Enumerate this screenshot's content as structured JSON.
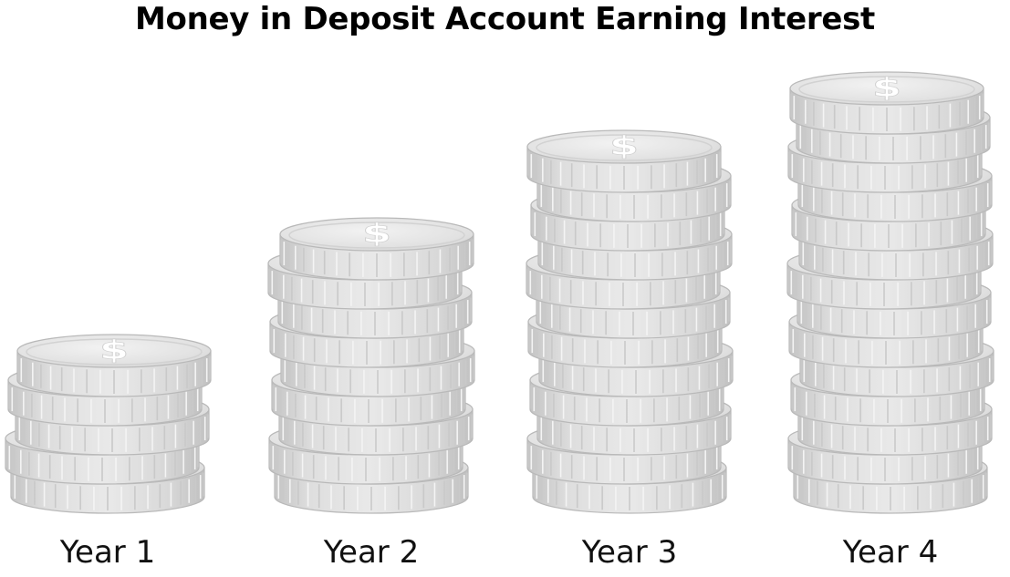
{
  "chart_data": {
    "type": "bar",
    "title": "Money in Deposit Account Earning Interest",
    "categories": [
      "Year 1",
      "Year 2",
      "Year 3",
      "Year 4"
    ],
    "values": [
      5,
      9,
      12,
      14
    ],
    "value_unit": "coin stack height (coins)",
    "xlabel": "",
    "ylabel": "",
    "grid": false,
    "legend": "none",
    "symbol": "$",
    "colors": {
      "coin_face": "#e4e4e4",
      "coin_edge": "#cfcfcf",
      "coin_outline": "#b9b9b9",
      "coin_ridge": "#ededed",
      "dollar_sign": "#ffffff",
      "text": "#111111"
    }
  }
}
